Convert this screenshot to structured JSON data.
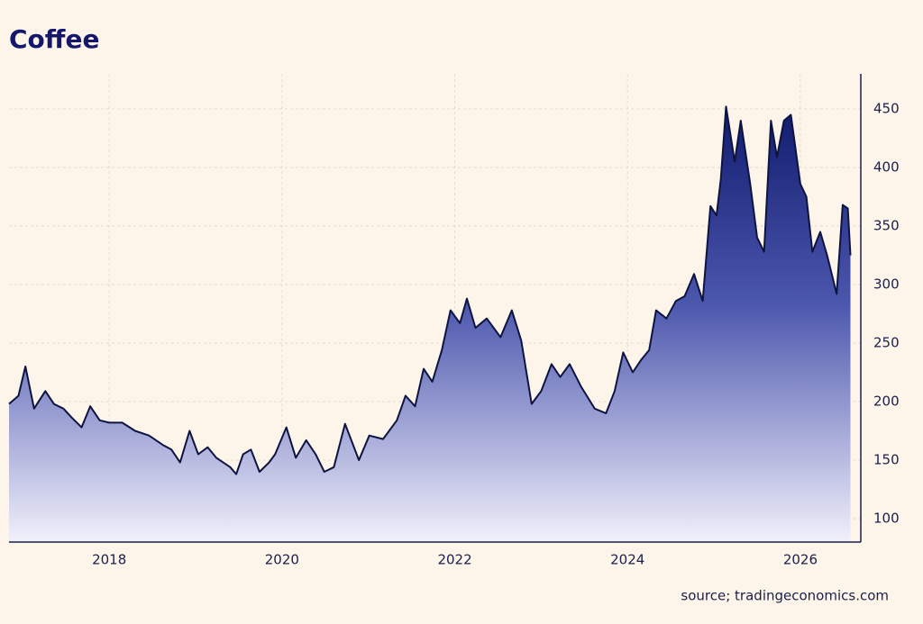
{
  "chart_data": {
    "type": "area",
    "title": "Coffee",
    "source": "source; tradingeconomics.com",
    "x": [
      2016.84,
      2016.95,
      2017.03,
      2017.13,
      2017.26,
      2017.36,
      2017.47,
      2017.57,
      2017.68,
      2017.78,
      2017.89,
      2018.0,
      2018.15,
      2018.3,
      2018.46,
      2018.62,
      2018.72,
      2018.82,
      2018.93,
      2019.03,
      2019.14,
      2019.24,
      2019.4,
      2019.47,
      2019.55,
      2019.64,
      2019.74,
      2019.85,
      2019.92,
      2020.05,
      2020.16,
      2020.28,
      2020.39,
      2020.49,
      2020.6,
      2020.73,
      2020.89,
      2021.01,
      2021.17,
      2021.33,
      2021.43,
      2021.54,
      2021.64,
      2021.74,
      2021.85,
      2021.95,
      2022.06,
      2022.14,
      2022.24,
      2022.37,
      2022.53,
      2022.66,
      2022.77,
      2022.89,
      2023.0,
      2023.12,
      2023.22,
      2023.33,
      2023.46,
      2023.62,
      2023.75,
      2023.85,
      2023.95,
      2024.06,
      2024.16,
      2024.25,
      2024.33,
      2024.45,
      2024.56,
      2024.66,
      2024.77,
      2024.87,
      2024.96,
      2025.03,
      2025.08,
      2025.14,
      2025.24,
      2025.31,
      2025.42,
      2025.5,
      2025.58,
      2025.66,
      2025.73,
      2025.81,
      2025.89,
      2026.0,
      2026.07,
      2026.14,
      2026.23,
      2026.31,
      2026.42,
      2026.49,
      2026.55,
      2026.58
    ],
    "series": [
      {
        "name": "Coffee",
        "color": "#0d1440",
        "values": [
          198,
          205,
          230,
          194,
          209,
          198,
          194,
          186,
          178,
          196,
          184,
          182,
          182,
          175,
          171,
          163,
          159,
          148,
          175,
          155,
          161,
          152,
          144,
          138,
          155,
          159,
          140,
          148,
          155,
          178,
          152,
          167,
          155,
          140,
          144,
          181,
          150,
          171,
          168,
          184,
          205,
          196,
          228,
          217,
          244,
          278,
          267,
          288,
          263,
          271,
          255,
          278,
          252,
          198,
          209,
          232,
          221,
          232,
          213,
          194,
          190,
          209,
          242,
          225,
          236,
          244,
          278,
          271,
          286,
          290,
          309,
          286,
          367,
          359,
          390,
          452,
          405,
          440,
          386,
          340,
          328,
          440,
          409,
          440,
          445,
          386,
          375,
          328,
          345,
          325,
          292,
          368,
          365,
          325
        ]
      }
    ],
    "xlim": [
      2016.84,
      2026.7
    ],
    "xticks": [
      2018,
      2020,
      2022,
      2024,
      2026
    ],
    "ylim": [
      80,
      480
    ],
    "yticks": [
      100,
      150,
      200,
      250,
      300,
      350,
      400,
      450
    ],
    "grid": true
  }
}
